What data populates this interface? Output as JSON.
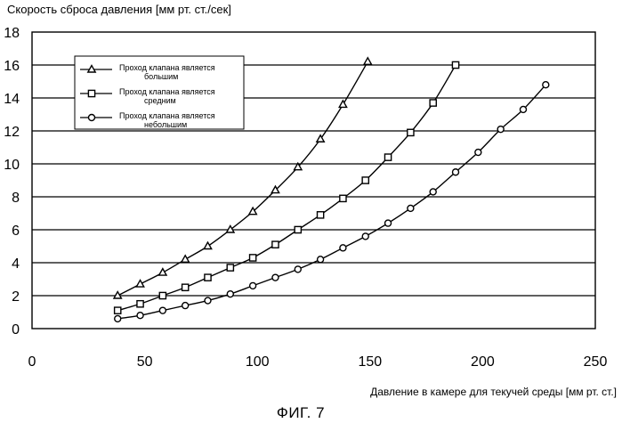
{
  "figure_caption": "ФИГ. 7",
  "chart_data": {
    "type": "line",
    "xlabel": "Давление в камере для текучей среды [мм рт. ст.]",
    "ylabel": "Скорость сброса давления [мм рт. ст./сек]",
    "xlim": [
      0,
      250
    ],
    "ylim": [
      0,
      18
    ],
    "xticks": [
      "0",
      "50",
      "100",
      "150",
      "200",
      "250"
    ],
    "yticks": [
      "0",
      "2",
      "4",
      "6",
      "8",
      "10",
      "12",
      "14",
      "16",
      "18"
    ],
    "grid": "horizontal",
    "legend_position": "top-left",
    "series": [
      {
        "name_lines": [
          "Проход клапана является",
          "большим"
        ],
        "marker": "triangle",
        "x": [
          38,
          48,
          58,
          68,
          78,
          88,
          98,
          108,
          118,
          128,
          138,
          149
        ],
        "y": [
          2.0,
          2.7,
          3.4,
          4.2,
          5.0,
          6.0,
          7.1,
          8.4,
          9.8,
          11.5,
          13.6,
          16.2
        ]
      },
      {
        "name_lines": [
          "Проход клапана является",
          "средним"
        ],
        "marker": "square",
        "x": [
          38,
          48,
          58,
          68,
          78,
          88,
          98,
          108,
          118,
          128,
          138,
          148,
          158,
          168,
          178,
          188
        ],
        "y": [
          1.1,
          1.5,
          2.0,
          2.5,
          3.1,
          3.7,
          4.3,
          5.1,
          6.0,
          6.9,
          7.9,
          9.0,
          10.4,
          11.9,
          13.7,
          16.0
        ]
      },
      {
        "name_lines": [
          "Проход клапана является",
          "небольшим"
        ],
        "marker": "circle",
        "x": [
          38,
          48,
          58,
          68,
          78,
          88,
          98,
          108,
          118,
          128,
          138,
          148,
          158,
          168,
          178,
          188,
          198,
          208,
          218,
          228
        ],
        "y": [
          0.6,
          0.8,
          1.1,
          1.4,
          1.7,
          2.1,
          2.6,
          3.1,
          3.6,
          4.2,
          4.9,
          5.6,
          6.4,
          7.3,
          8.3,
          9.5,
          10.7,
          12.1,
          13.3,
          14.8
        ]
      }
    ]
  }
}
